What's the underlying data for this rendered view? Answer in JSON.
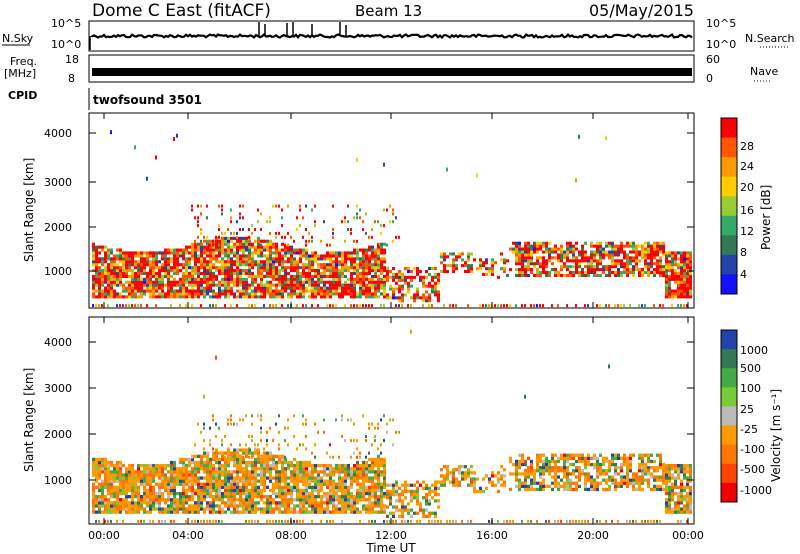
{
  "header": {
    "title": "Dome C East (fitACF)",
    "beam": "Beam 13",
    "date": "05/May/2015"
  },
  "noise_panel": {
    "left_label": "N.Sky",
    "right_label": "N.Search",
    "ticks": [
      "10^5",
      "10^0"
    ]
  },
  "freq_panel": {
    "left_label_line1": "Freq.",
    "left_label_line2": "[MHz]",
    "left_ticks": [
      "18",
      "8"
    ],
    "right_label": "Nave",
    "right_ticks": [
      "60",
      "0"
    ]
  },
  "cpid": {
    "label": "CPID",
    "program": "twofsound 3501"
  },
  "colorbars": {
    "power": {
      "label": "Power [dB]",
      "ticks": [
        "28",
        "24",
        "20",
        "16",
        "12",
        "8",
        "4"
      ],
      "colors": [
        "#ff0000",
        "#ff5500",
        "#ff9900",
        "#ffcc00",
        "#99cc33",
        "#33aa66",
        "#337755",
        "#2244aa",
        "#1111ff"
      ]
    },
    "velocity": {
      "label": "Velocity [m s⁻¹]",
      "ticks": [
        "1000",
        "500",
        "100",
        "25",
        "-25",
        "-100",
        "-500",
        "-1000"
      ],
      "colors": [
        "#2244aa",
        "#337755",
        "#44aa44",
        "#77cc33",
        "#bbbbbb",
        "#ff9900",
        "#ff7700",
        "#ff4400",
        "#ee0000"
      ]
    }
  },
  "chart_data": [
    {
      "type": "line",
      "panel": "noise",
      "series": [
        {
          "name": "N.Sky",
          "values": "≈10^2 level throughout day with spikes to 10^5 near 07:00 and 10:00"
        }
      ],
      "ylabel": "N.Sky",
      "yscale": "log",
      "ylim": [
        1,
        100000
      ]
    },
    {
      "type": "line",
      "panel": "frequency",
      "ylabel": "Freq. [MHz]",
      "ylim": [
        8,
        18
      ],
      "note": "twofsound alternating frequencies"
    },
    {
      "type": "heatmap",
      "panel": "power",
      "title": "",
      "xlabel": "",
      "ylabel": "Slant Range [km]",
      "xlim": [
        "00:00",
        "00:00"
      ],
      "ylim": [
        180,
        4500
      ],
      "yticks": [
        1000,
        2000,
        3000,
        4000
      ],
      "colorbar": "Power [dB]",
      "clim": [
        0,
        30
      ]
    },
    {
      "type": "heatmap",
      "panel": "velocity",
      "xlabel": "Time UT",
      "ylabel": "Slant Range [km]",
      "xticks": [
        "00:00",
        "04:00",
        "08:00",
        "12:00",
        "16:00",
        "20:00",
        "00:00"
      ],
      "ylim": [
        180,
        4500
      ],
      "yticks": [
        1000,
        2000,
        3000,
        4000
      ],
      "colorbar": "Velocity [m s⁻¹]",
      "clim": [
        -1000,
        1000
      ]
    }
  ],
  "axes": {
    "ylabel": "Slant Range [km]",
    "yticks": [
      "4000",
      "3000",
      "2000",
      "1000"
    ],
    "xticks": [
      "00:00",
      "04:00",
      "08:00",
      "12:00",
      "16:00",
      "20:00",
      "00:00"
    ],
    "xlabel": "Time UT"
  }
}
